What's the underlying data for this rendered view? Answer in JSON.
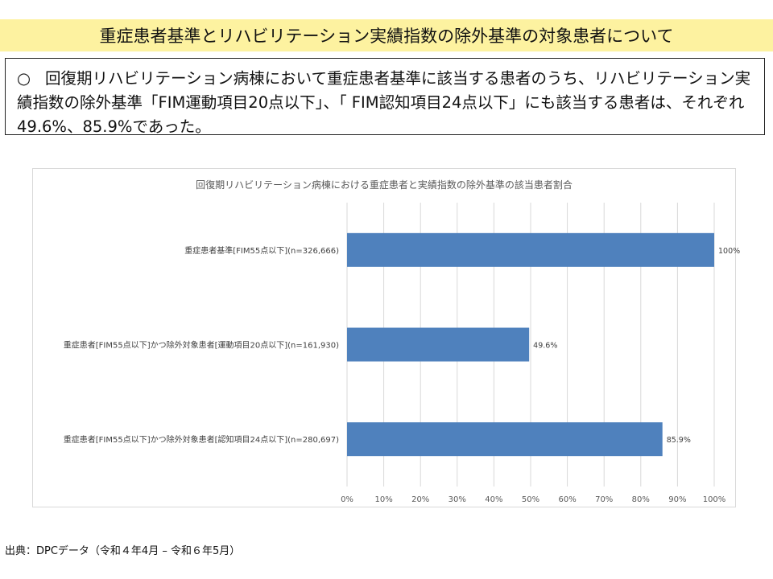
{
  "page": {
    "title": "重症患者基準とリハビリテーション実績指数の除外基準の対象患者について",
    "bullet": "○",
    "summary": "回復期リハビリテーション病棟において重症患者基準に該当する患者のうち、リハビリテーション実績指数の除外基準「FIM運動項目20点以下」、「 FIM認知項目24点以下」にも該当する患者は、それぞれ49.6%、85.9%であった。",
    "source": "出典：DPCデータ（令和４年4月 – 令和６年5月）"
  },
  "colors": {
    "banner": "#fdf2a0",
    "bar": "#4f81bd",
    "grid": "#d9d9d9"
  },
  "chart_data": {
    "type": "bar",
    "orientation": "horizontal",
    "title": "回復期リハビリテーション病棟における重症患者と実績指数の除外基準の該当患者割合",
    "categories": [
      "重症患者基準[FIM55点以下](n=326,666)",
      "重症患者[FIM55点以下]かつ除外対象患者[運動項目20点以下](n=161,930)",
      "重症患者[FIM55点以下]かつ除外対象患者[認知項目24点以下](n=280,697)"
    ],
    "values": [
      100,
      49.6,
      85.9
    ],
    "data_labels": [
      "100%",
      "49.6%",
      "85.9%"
    ],
    "xlim": [
      0,
      100
    ],
    "xticks": [
      "0%",
      "10%",
      "20%",
      "30%",
      "40%",
      "50%",
      "60%",
      "70%",
      "80%",
      "90%",
      "100%"
    ],
    "grid": true,
    "legend": "none"
  }
}
